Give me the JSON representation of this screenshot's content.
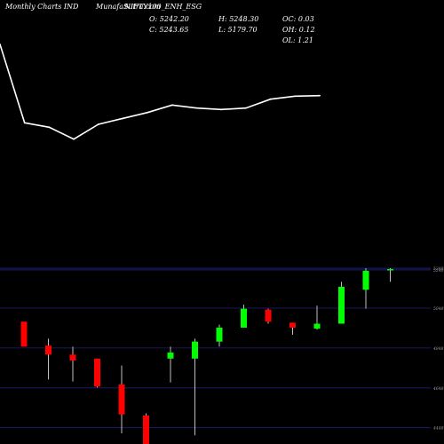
{
  "header": {
    "left_label": "Monthly Charts IND",
    "symbol_label": "MunafaSutra.com",
    "symbol_overlay": "NIFTY100_ENH_ESG"
  },
  "ohlc": {
    "o": "O: 5242.20",
    "h": "H: 5248.30",
    "oc": "OC: 0.03",
    "c": "C: 5243.65",
    "l": "L: 5179.70",
    "oh": "OH: 0.12",
    "ol": "OL: 1.21"
  },
  "colors": {
    "up": "#00ff00",
    "down": "#ff0000",
    "line": "#ffffff",
    "grid": "#1f1f7a",
    "background": "#000000"
  },
  "chart_data": [
    {
      "type": "line",
      "x": [
        1,
        2,
        3,
        4,
        5,
        6,
        7,
        8,
        9,
        10,
        11,
        12,
        13,
        14
      ],
      "values": [
        4050,
        3785,
        3770,
        3730,
        3780,
        3800,
        3820,
        3845,
        3835,
        3830,
        3835,
        3865,
        3875,
        3877
      ],
      "ylim": [
        3300,
        4200
      ]
    },
    {
      "type": "candlestick",
      "ylim": [
        4420,
        5275
      ],
      "y_ticks": [
        "5248",
        "5240",
        "5048",
        "4848",
        "4648",
        "4448"
      ],
      "candles": [
        {
          "open": 4980,
          "high": 4980,
          "low": 4855,
          "close": 4855
        },
        {
          "open": 4860,
          "high": 4895,
          "low": 4690,
          "close": 4815
        },
        {
          "open": 4815,
          "high": 4855,
          "low": 4680,
          "close": 4785
        },
        {
          "open": 4795,
          "high": 4795,
          "low": 4650,
          "close": 4655
        },
        {
          "open": 4665,
          "high": 4760,
          "low": 4420,
          "close": 4515
        },
        {
          "open": 4510,
          "high": 4520,
          "low": 4320,
          "close": 4320
        },
        {
          "open": 4795,
          "high": 4855,
          "low": 4675,
          "close": 4825
        },
        {
          "open": 4795,
          "high": 4895,
          "low": 4410,
          "close": 4880
        },
        {
          "open": 4880,
          "high": 4965,
          "low": 4855,
          "close": 4950
        },
        {
          "open": 4950,
          "high": 5065,
          "low": 4950,
          "close": 5045
        },
        {
          "open": 5040,
          "high": 5045,
          "low": 4970,
          "close": 4980
        },
        {
          "open": 4975,
          "high": 4975,
          "low": 4915,
          "close": 4950
        },
        {
          "open": 4945,
          "high": 5060,
          "low": 4940,
          "close": 4970
        },
        {
          "open": 4970,
          "high": 5180,
          "low": 4970,
          "close": 5155
        },
        {
          "open": 5140,
          "high": 5248,
          "low": 5045,
          "close": 5235
        },
        {
          "open": 5242.2,
          "high": 5248.3,
          "low": 5179.7,
          "close": 5243.65
        }
      ]
    }
  ]
}
